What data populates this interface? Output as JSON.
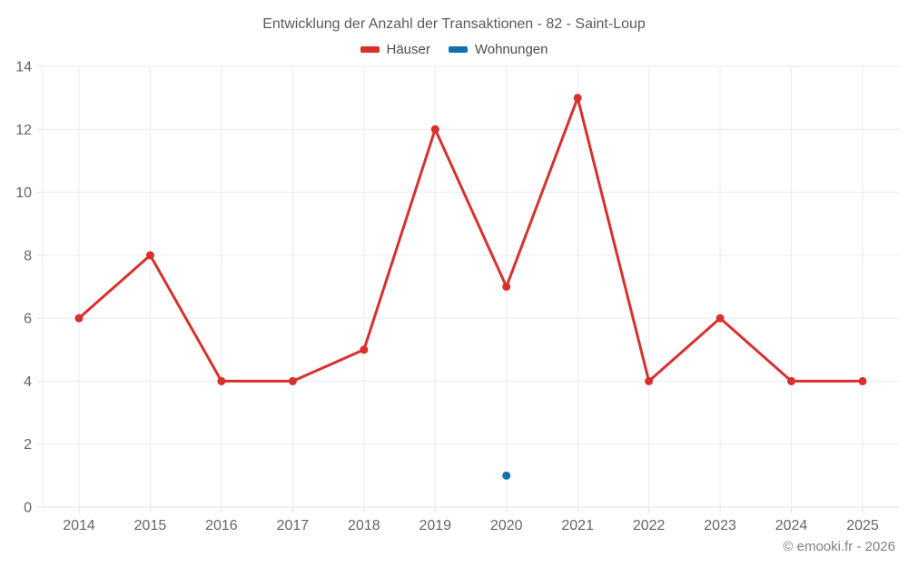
{
  "chart_data": {
    "type": "line",
    "title": "Entwicklung der Anzahl der Transaktionen - 82 - Saint-Loup",
    "categories": [
      "2014",
      "2015",
      "2016",
      "2017",
      "2018",
      "2019",
      "2020",
      "2021",
      "2022",
      "2023",
      "2024",
      "2025"
    ],
    "series": [
      {
        "name": "Häuser",
        "color": "#d7312e",
        "values": [
          6,
          8,
          4,
          4,
          5,
          12,
          7,
          13,
          4,
          6,
          4,
          4
        ]
      },
      {
        "name": "Wohnungen",
        "color": "#1470ad",
        "values": [
          null,
          null,
          null,
          null,
          null,
          null,
          1,
          null,
          null,
          null,
          null,
          null
        ]
      }
    ],
    "xlabel": "",
    "ylabel": "",
    "ylim": [
      0,
      14
    ],
    "ytick_step": 2,
    "grid": true,
    "legend_position": "top"
  },
  "colors": {
    "grid_line": "#ebebeb",
    "axis_line": "#e3e3e3",
    "tick_text": "#666666",
    "title_text": "#595a5c",
    "legend_text": "#4c4d4f",
    "copyright_text": "#7f8082"
  },
  "footer": {
    "copyright": "© emooki.fr - 2026"
  }
}
